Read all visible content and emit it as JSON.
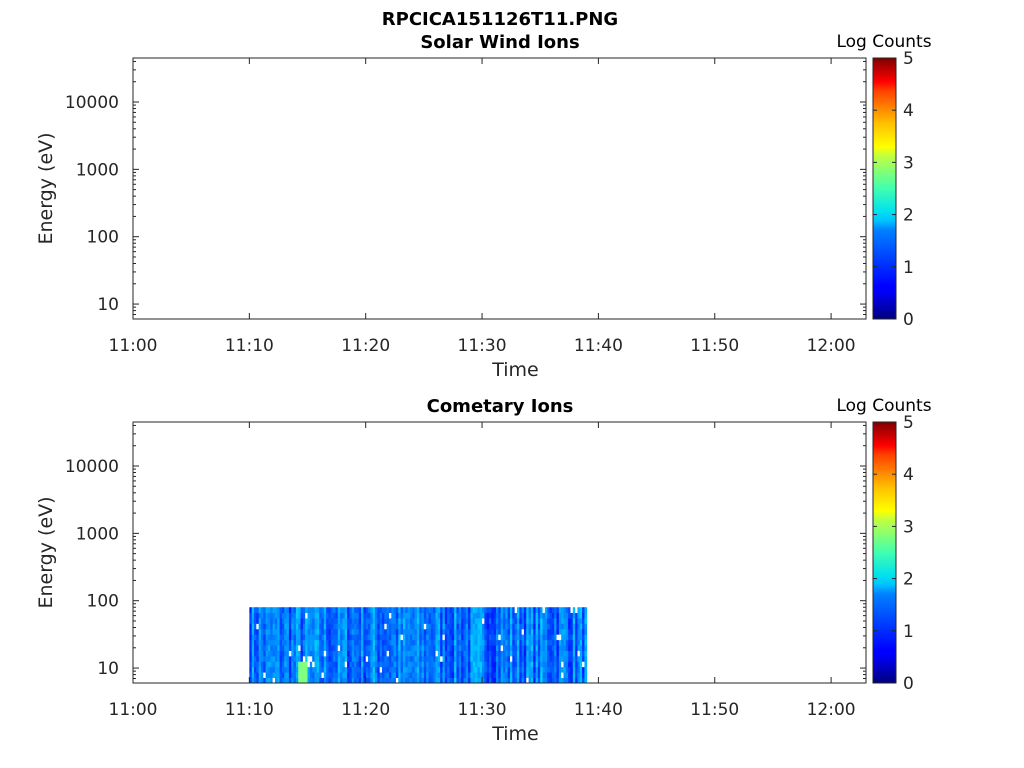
{
  "figure_title": "RPCICA151126T11.PNG",
  "chart_data": [
    {
      "type": "heatmap",
      "title": "Solar Wind Ions",
      "xlabel": "Time",
      "ylabel": "Energy (eV)",
      "x_ticks": [
        "11:00",
        "11:10",
        "11:20",
        "11:30",
        "11:40",
        "11:50",
        "12:00"
      ],
      "y_ticks": [
        "10",
        "100",
        "1000",
        "10000"
      ],
      "y_scale": "log",
      "xlim": [
        "11:00",
        "12:03"
      ],
      "ylim": [
        6,
        45000
      ],
      "colorbar": {
        "label": "Log Counts",
        "ticks": [
          "0",
          "1",
          "2",
          "3",
          "4",
          "5"
        ],
        "range": [
          0,
          5
        ],
        "colormap": "jet"
      },
      "data_region": null
    },
    {
      "type": "heatmap",
      "title": "Cometary Ions",
      "xlabel": "Time",
      "ylabel": "Energy (eV)",
      "x_ticks": [
        "11:00",
        "11:10",
        "11:20",
        "11:30",
        "11:40",
        "11:50",
        "12:00"
      ],
      "y_ticks": [
        "10",
        "100",
        "1000",
        "10000"
      ],
      "y_scale": "log",
      "xlim": [
        "11:00",
        "12:03"
      ],
      "ylim": [
        6,
        45000
      ],
      "colorbar": {
        "label": "Log Counts",
        "ticks": [
          "0",
          "1",
          "2",
          "3",
          "4",
          "5"
        ],
        "range": [
          0,
          5
        ],
        "colormap": "jet"
      },
      "data_region": {
        "time_start": "11:10",
        "time_end": "11:39",
        "energy_min": 6,
        "energy_max": 80,
        "typical_log_counts": [
          0.7,
          1.7
        ],
        "peak_log_counts": 2.5
      }
    }
  ]
}
